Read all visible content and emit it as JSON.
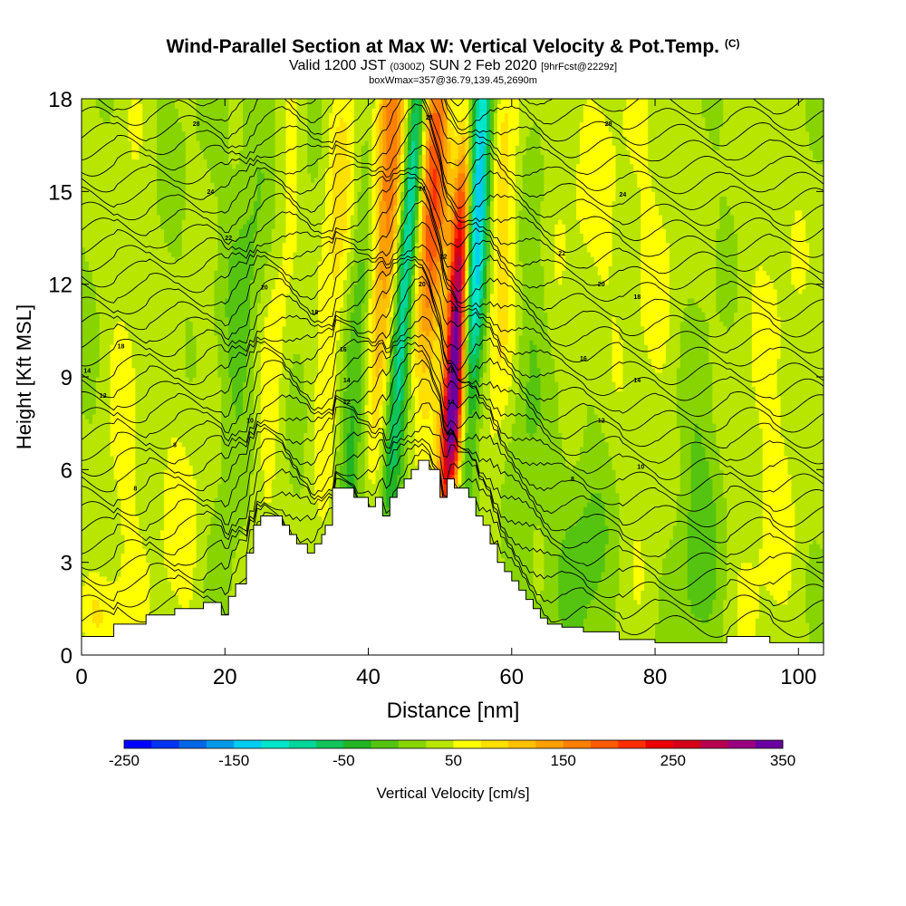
{
  "header": {
    "title": "Wind-Parallel Section at Max W: Vertical Velocity & Pot.Temp.",
    "title_mark": "(C)",
    "sub_a": "Valid 1200 JST",
    "sub_b": "(0300Z)",
    "sub_c": "SUN 2 Feb 2020",
    "sub_d": "[9hrFcst@2229z]",
    "sub_e": "boxWmax=357@36.79,139.45,2690m"
  },
  "chart_data": {
    "type": "heatmap",
    "xlabel": "Distance [nm]",
    "ylabel": "Height [Kft MSL]",
    "xlim": [
      0,
      103.5
    ],
    "ylim": [
      0,
      18
    ],
    "xticks": [
      0,
      20,
      40,
      60,
      80,
      100
    ],
    "yticks": [
      0,
      3,
      6,
      9,
      12,
      15,
      18
    ],
    "colorbar": {
      "label": "Vertical Velocity [cm/s]",
      "ticks": [
        -250,
        -150,
        -50,
        50,
        150,
        250,
        350
      ],
      "min": -250,
      "max": 350,
      "step": 25,
      "colors": [
        "#0000ff",
        "#0033f2",
        "#0066e6",
        "#0099e8",
        "#00ccf0",
        "#00e6cc",
        "#00d699",
        "#10c45a",
        "#22b422",
        "#55c411",
        "#88d400",
        "#b8e600",
        "#ffff00",
        "#ffe000",
        "#ffc000",
        "#ffa000",
        "#ff8000",
        "#ff5a00",
        "#ff2e00",
        "#ee0000",
        "#d40018",
        "#b80050",
        "#9a0080",
        "#6a00a0"
      ]
    },
    "terrain_kft": [
      [
        0,
        0.6
      ],
      [
        2,
        0.6
      ],
      [
        4.5,
        0.6
      ],
      [
        4.5,
        1.0
      ],
      [
        9,
        1.0
      ],
      [
        9,
        1.3
      ],
      [
        13,
        1.3
      ],
      [
        13,
        1.5
      ],
      [
        17,
        1.5
      ],
      [
        17,
        1.7
      ],
      [
        19.5,
        1.7
      ],
      [
        19.5,
        1.3
      ],
      [
        20.5,
        1.3
      ],
      [
        20.5,
        1.9
      ],
      [
        21.5,
        1.9
      ],
      [
        21.5,
        2.3
      ],
      [
        23,
        2.3
      ],
      [
        23,
        3.3
      ],
      [
        24,
        3.3
      ],
      [
        24,
        4.2
      ],
      [
        25,
        4.2
      ],
      [
        25,
        4.5
      ],
      [
        28,
        4.5
      ],
      [
        28,
        4.2
      ],
      [
        29,
        4.2
      ],
      [
        29,
        3.9
      ],
      [
        30,
        3.9
      ],
      [
        30,
        3.6
      ],
      [
        31.5,
        3.6
      ],
      [
        31.5,
        3.3
      ],
      [
        32.5,
        3.3
      ],
      [
        32.5,
        3.6
      ],
      [
        33.5,
        3.6
      ],
      [
        33.5,
        3.9
      ],
      [
        34,
        3.9
      ],
      [
        34,
        4.2
      ],
      [
        35,
        4.2
      ],
      [
        35,
        5.4
      ],
      [
        38,
        5.4
      ],
      [
        38,
        5.1
      ],
      [
        40,
        5.1
      ],
      [
        40,
        4.8
      ],
      [
        41,
        4.8
      ],
      [
        41,
        5.1
      ],
      [
        42,
        5.1
      ],
      [
        42,
        4.5
      ],
      [
        43,
        4.5
      ],
      [
        43,
        5.1
      ],
      [
        44,
        5.1
      ],
      [
        44,
        5.4
      ],
      [
        45,
        5.4
      ],
      [
        45,
        5.7
      ],
      [
        46,
        5.7
      ],
      [
        46,
        6.0
      ],
      [
        47,
        6.0
      ],
      [
        47,
        6.3
      ],
      [
        48.5,
        6.3
      ],
      [
        48.5,
        6.0
      ],
      [
        50,
        6.0
      ],
      [
        50,
        5.1
      ],
      [
        51,
        5.1
      ],
      [
        51,
        5.7
      ],
      [
        52,
        5.7
      ],
      [
        52,
        5.4
      ],
      [
        54,
        5.4
      ],
      [
        54,
        5.1
      ],
      [
        55,
        5.1
      ],
      [
        55,
        4.5
      ],
      [
        56,
        4.5
      ],
      [
        56,
        4.2
      ],
      [
        57,
        4.2
      ],
      [
        57,
        3.6
      ],
      [
        58,
        3.6
      ],
      [
        58,
        3.0
      ],
      [
        59,
        3.0
      ],
      [
        59,
        2.7
      ],
      [
        60,
        2.7
      ],
      [
        60,
        2.4
      ],
      [
        61,
        2.4
      ],
      [
        61,
        2.1
      ],
      [
        62,
        2.1
      ],
      [
        62,
        1.8
      ],
      [
        63,
        1.8
      ],
      [
        63,
        1.5
      ],
      [
        64,
        1.5
      ],
      [
        64,
        1.2
      ],
      [
        65,
        1.2
      ],
      [
        65,
        1.0
      ],
      [
        67,
        1.0
      ],
      [
        67,
        0.9
      ],
      [
        70,
        0.9
      ],
      [
        70,
        0.75
      ],
      [
        75,
        0.75
      ],
      [
        75,
        0.5
      ],
      [
        80,
        0.5
      ],
      [
        80,
        0.4
      ],
      [
        90,
        0.4
      ],
      [
        90,
        0.6
      ],
      [
        96,
        0.6
      ],
      [
        96,
        0.4
      ],
      [
        103.5,
        0.4
      ]
    ],
    "w_features": [
      {
        "x": 52.5,
        "y": 11.0,
        "sx": 1.0,
        "sy": 4.5,
        "tilt": 0.22,
        "w": 350
      },
      {
        "x": 51.8,
        "y": 7.5,
        "sx": 1.3,
        "sy": 2.0,
        "tilt": 0.3,
        "w": 120
      },
      {
        "x": 55.0,
        "y": 14.5,
        "sx": 1.4,
        "sy": 6.0,
        "tilt": 0.2,
        "w": -230
      },
      {
        "x": 49.0,
        "y": 15.0,
        "sx": 1.5,
        "sy": 4.5,
        "tilt": 0.15,
        "w": 180
      },
      {
        "x": 42.5,
        "y": 15.0,
        "sx": 1.9,
        "sy": 5.5,
        "tilt": 0.25,
        "w": 160
      },
      {
        "x": 45.5,
        "y": 13.5,
        "sx": 1.0,
        "sy": 6.0,
        "tilt": 0.3,
        "w": -170
      },
      {
        "x": 39.0,
        "y": 10.5,
        "sx": 1.5,
        "sy": 6.0,
        "tilt": 0.3,
        "w": -90
      },
      {
        "x": 35.5,
        "y": 13.0,
        "sx": 1.6,
        "sy": 6.0,
        "tilt": 0.2,
        "w": 60
      },
      {
        "x": 58.5,
        "y": 14.0,
        "sx": 2.4,
        "sy": 6.0,
        "tilt": 0.1,
        "w": 70
      },
      {
        "x": 62.0,
        "y": 11.0,
        "sx": 1.8,
        "sy": 7.0,
        "tilt": 0.1,
        "w": -40
      },
      {
        "x": 72.0,
        "y": 15.0,
        "sx": 6.0,
        "sy": 4.0,
        "tilt": 0.0,
        "w": 30
      },
      {
        "x": 80.0,
        "y": 9.0,
        "sx": 3.0,
        "sy": 8.0,
        "tilt": 0.3,
        "w": 20
      },
      {
        "x": 96.0,
        "y": 6.0,
        "sx": 4.0,
        "sy": 9.0,
        "tilt": 0.15,
        "w": 30
      },
      {
        "x": 86.0,
        "y": 4.0,
        "sx": 2.5,
        "sy": 3.5,
        "tilt": 0.0,
        "w": -40
      },
      {
        "x": 70.0,
        "y": 3.0,
        "sx": 2.5,
        "sy": 2.5,
        "tilt": 0.0,
        "w": -40
      },
      {
        "x": 14.0,
        "y": 4.0,
        "sx": 5.0,
        "sy": 4.0,
        "tilt": 0.0,
        "w": 30
      },
      {
        "x": 22.0,
        "y": 10.0,
        "sx": 1.8,
        "sy": 8.0,
        "tilt": 0.35,
        "w": -35
      },
      {
        "x": 27.0,
        "y": 10.0,
        "sx": 1.5,
        "sy": 8.0,
        "tilt": 0.35,
        "w": 35
      },
      {
        "x": 6.0,
        "y": 10.0,
        "sx": 2.0,
        "sy": 8.0,
        "tilt": 0.1,
        "w": 25
      },
      {
        "x": 2.0,
        "y": 1.5,
        "sx": 2.0,
        "sy": 1.0,
        "tilt": 0.0,
        "w": 45
      }
    ],
    "theta_labels": [
      {
        "text": "28",
        "x": 16,
        "y": 17.2
      },
      {
        "text": "24",
        "x": 18,
        "y": 15.0
      },
      {
        "text": "22",
        "x": 20.5,
        "y": 13.5
      },
      {
        "text": "20",
        "x": 25.5,
        "y": 11.9
      },
      {
        "text": "18",
        "x": 5.5,
        "y": 10.0
      },
      {
        "text": "18",
        "x": 32.5,
        "y": 11.1
      },
      {
        "text": "16",
        "x": 36.5,
        "y": 9.9
      },
      {
        "text": "14",
        "x": 37,
        "y": 8.9
      },
      {
        "text": "12",
        "x": 37,
        "y": 8.2
      },
      {
        "text": "14",
        "x": 0.8,
        "y": 9.2
      },
      {
        "text": "12",
        "x": 3,
        "y": 8.4
      },
      {
        "text": "10",
        "x": 23.5,
        "y": 7.6
      },
      {
        "text": "8",
        "x": 13,
        "y": 6.8
      },
      {
        "text": "8",
        "x": 7.5,
        "y": 5.4
      },
      {
        "text": "28",
        "x": 48.5,
        "y": 17.4
      },
      {
        "text": "24",
        "x": 47.5,
        "y": 15.1
      },
      {
        "text": "22",
        "x": 50.5,
        "y": 12.9
      },
      {
        "text": "20",
        "x": 47.5,
        "y": 12.0
      },
      {
        "text": "18",
        "x": 52,
        "y": 11.2
      },
      {
        "text": "16",
        "x": 51.5,
        "y": 9.2
      },
      {
        "text": "14",
        "x": 51.5,
        "y": 8.2
      },
      {
        "text": "12",
        "x": 51.5,
        "y": 7.2
      },
      {
        "text": "28",
        "x": 73.5,
        "y": 17.2
      },
      {
        "text": "24",
        "x": 75.5,
        "y": 14.9
      },
      {
        "text": "22",
        "x": 67,
        "y": 13.0
      },
      {
        "text": "20",
        "x": 72.5,
        "y": 12.0
      },
      {
        "text": "18",
        "x": 77.5,
        "y": 11.6
      },
      {
        "text": "16",
        "x": 70,
        "y": 9.6
      },
      {
        "text": "14",
        "x": 77.5,
        "y": 8.9
      },
      {
        "text": "12",
        "x": 72.5,
        "y": 7.6
      },
      {
        "text": "10",
        "x": 78,
        "y": 6.1
      },
      {
        "text": "8",
        "x": 68.5,
        "y": 5.7
      }
    ]
  }
}
